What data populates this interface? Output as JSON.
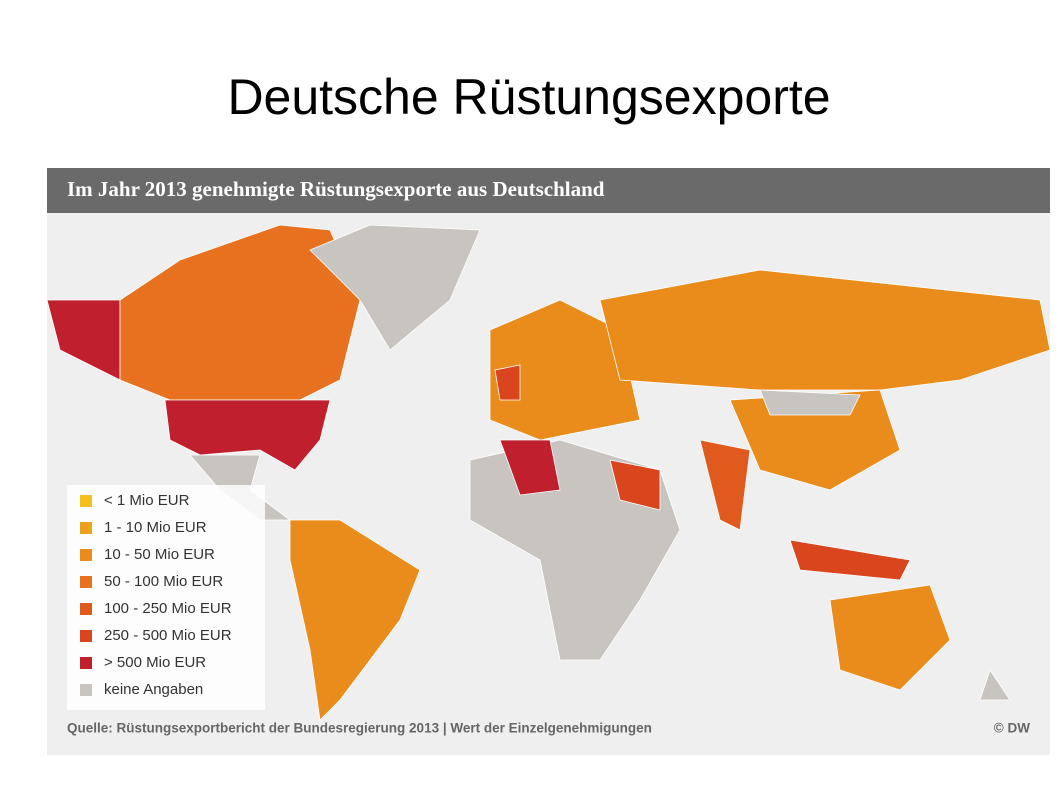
{
  "title": "Deutsche Rüstungsexporte",
  "map": {
    "header": "Im Jahr 2013 genehmigte Rüstungsexporte aus Deutschland",
    "legend": [
      {
        "label": "< 1 Mio EUR",
        "color": "#f3c01e"
      },
      {
        "label": "1 - 10 Mio EUR",
        "color": "#eda21c"
      },
      {
        "label": "10 - 50 Mio EUR",
        "color": "#ea8c1c"
      },
      {
        "label": "50 - 100 Mio EUR",
        "color": "#e8711f"
      },
      {
        "label": "100 - 250 Mio EUR",
        "color": "#e05a1e"
      },
      {
        "label": "250 - 500 Mio EUR",
        "color": "#d9461e"
      },
      {
        "label": "> 500 Mio EUR",
        "color": "#c0202e"
      },
      {
        "label": "keine Angaben",
        "color": "#c8c4c0"
      }
    ],
    "source": "Quelle: Rüstungsexportbericht der Bundesregierung 2013 | Wert der Einzelgenehmigungen",
    "credit": "© DW"
  }
}
